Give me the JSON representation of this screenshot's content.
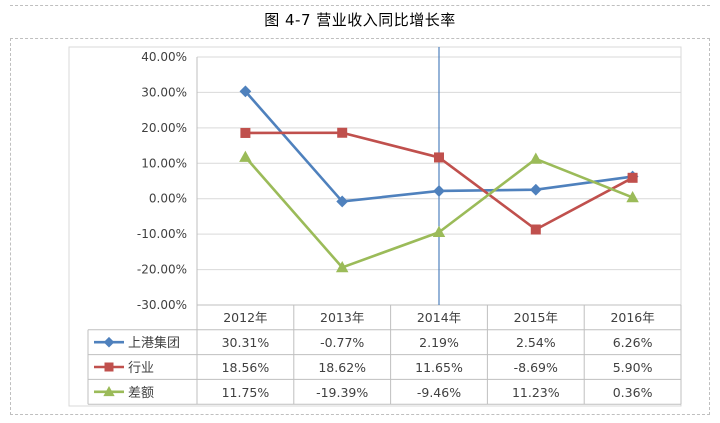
{
  "caption": "图  4-7  营业收入同比增长率",
  "chart_data": {
    "type": "line",
    "title": "图  4-7  营业收入同比增长率",
    "categories": [
      "2012年",
      "2013年",
      "2014年",
      "2015年",
      "2016年"
    ],
    "ylim": [
      -30,
      40
    ],
    "yticks": [
      40,
      30,
      20,
      10,
      0,
      -10,
      -20,
      -30
    ],
    "ytick_labels": [
      "40.00%",
      "30.00%",
      "20.00%",
      "10.00%",
      "0.00%",
      "-10.00%",
      "-20.00%",
      "-30.00%"
    ],
    "series": [
      {
        "name": "上港集团",
        "color": "#4f81bd",
        "marker": "diamond",
        "values": [
          30.31,
          -0.77,
          2.19,
          2.54,
          6.26
        ],
        "labels": [
          "30.31%",
          "-0.77%",
          "2.19%",
          "2.54%",
          "6.26%"
        ]
      },
      {
        "name": "行业",
        "color": "#c0504d",
        "marker": "square",
        "values": [
          18.56,
          18.62,
          11.65,
          -8.69,
          5.9
        ],
        "labels": [
          "18.56%",
          "18.62%",
          "11.65%",
          "-8.69%",
          "5.90%"
        ]
      },
      {
        "name": "差额",
        "color": "#9bbb59",
        "marker": "triangle",
        "values": [
          11.75,
          -19.39,
          -9.46,
          11.23,
          0.36
        ],
        "labels": [
          "11.75%",
          "-19.39%",
          "-9.46%",
          "11.23%",
          "0.36%"
        ]
      }
    ],
    "highlight_line_color": "#4f81bd",
    "highlight_category_index": 2
  }
}
